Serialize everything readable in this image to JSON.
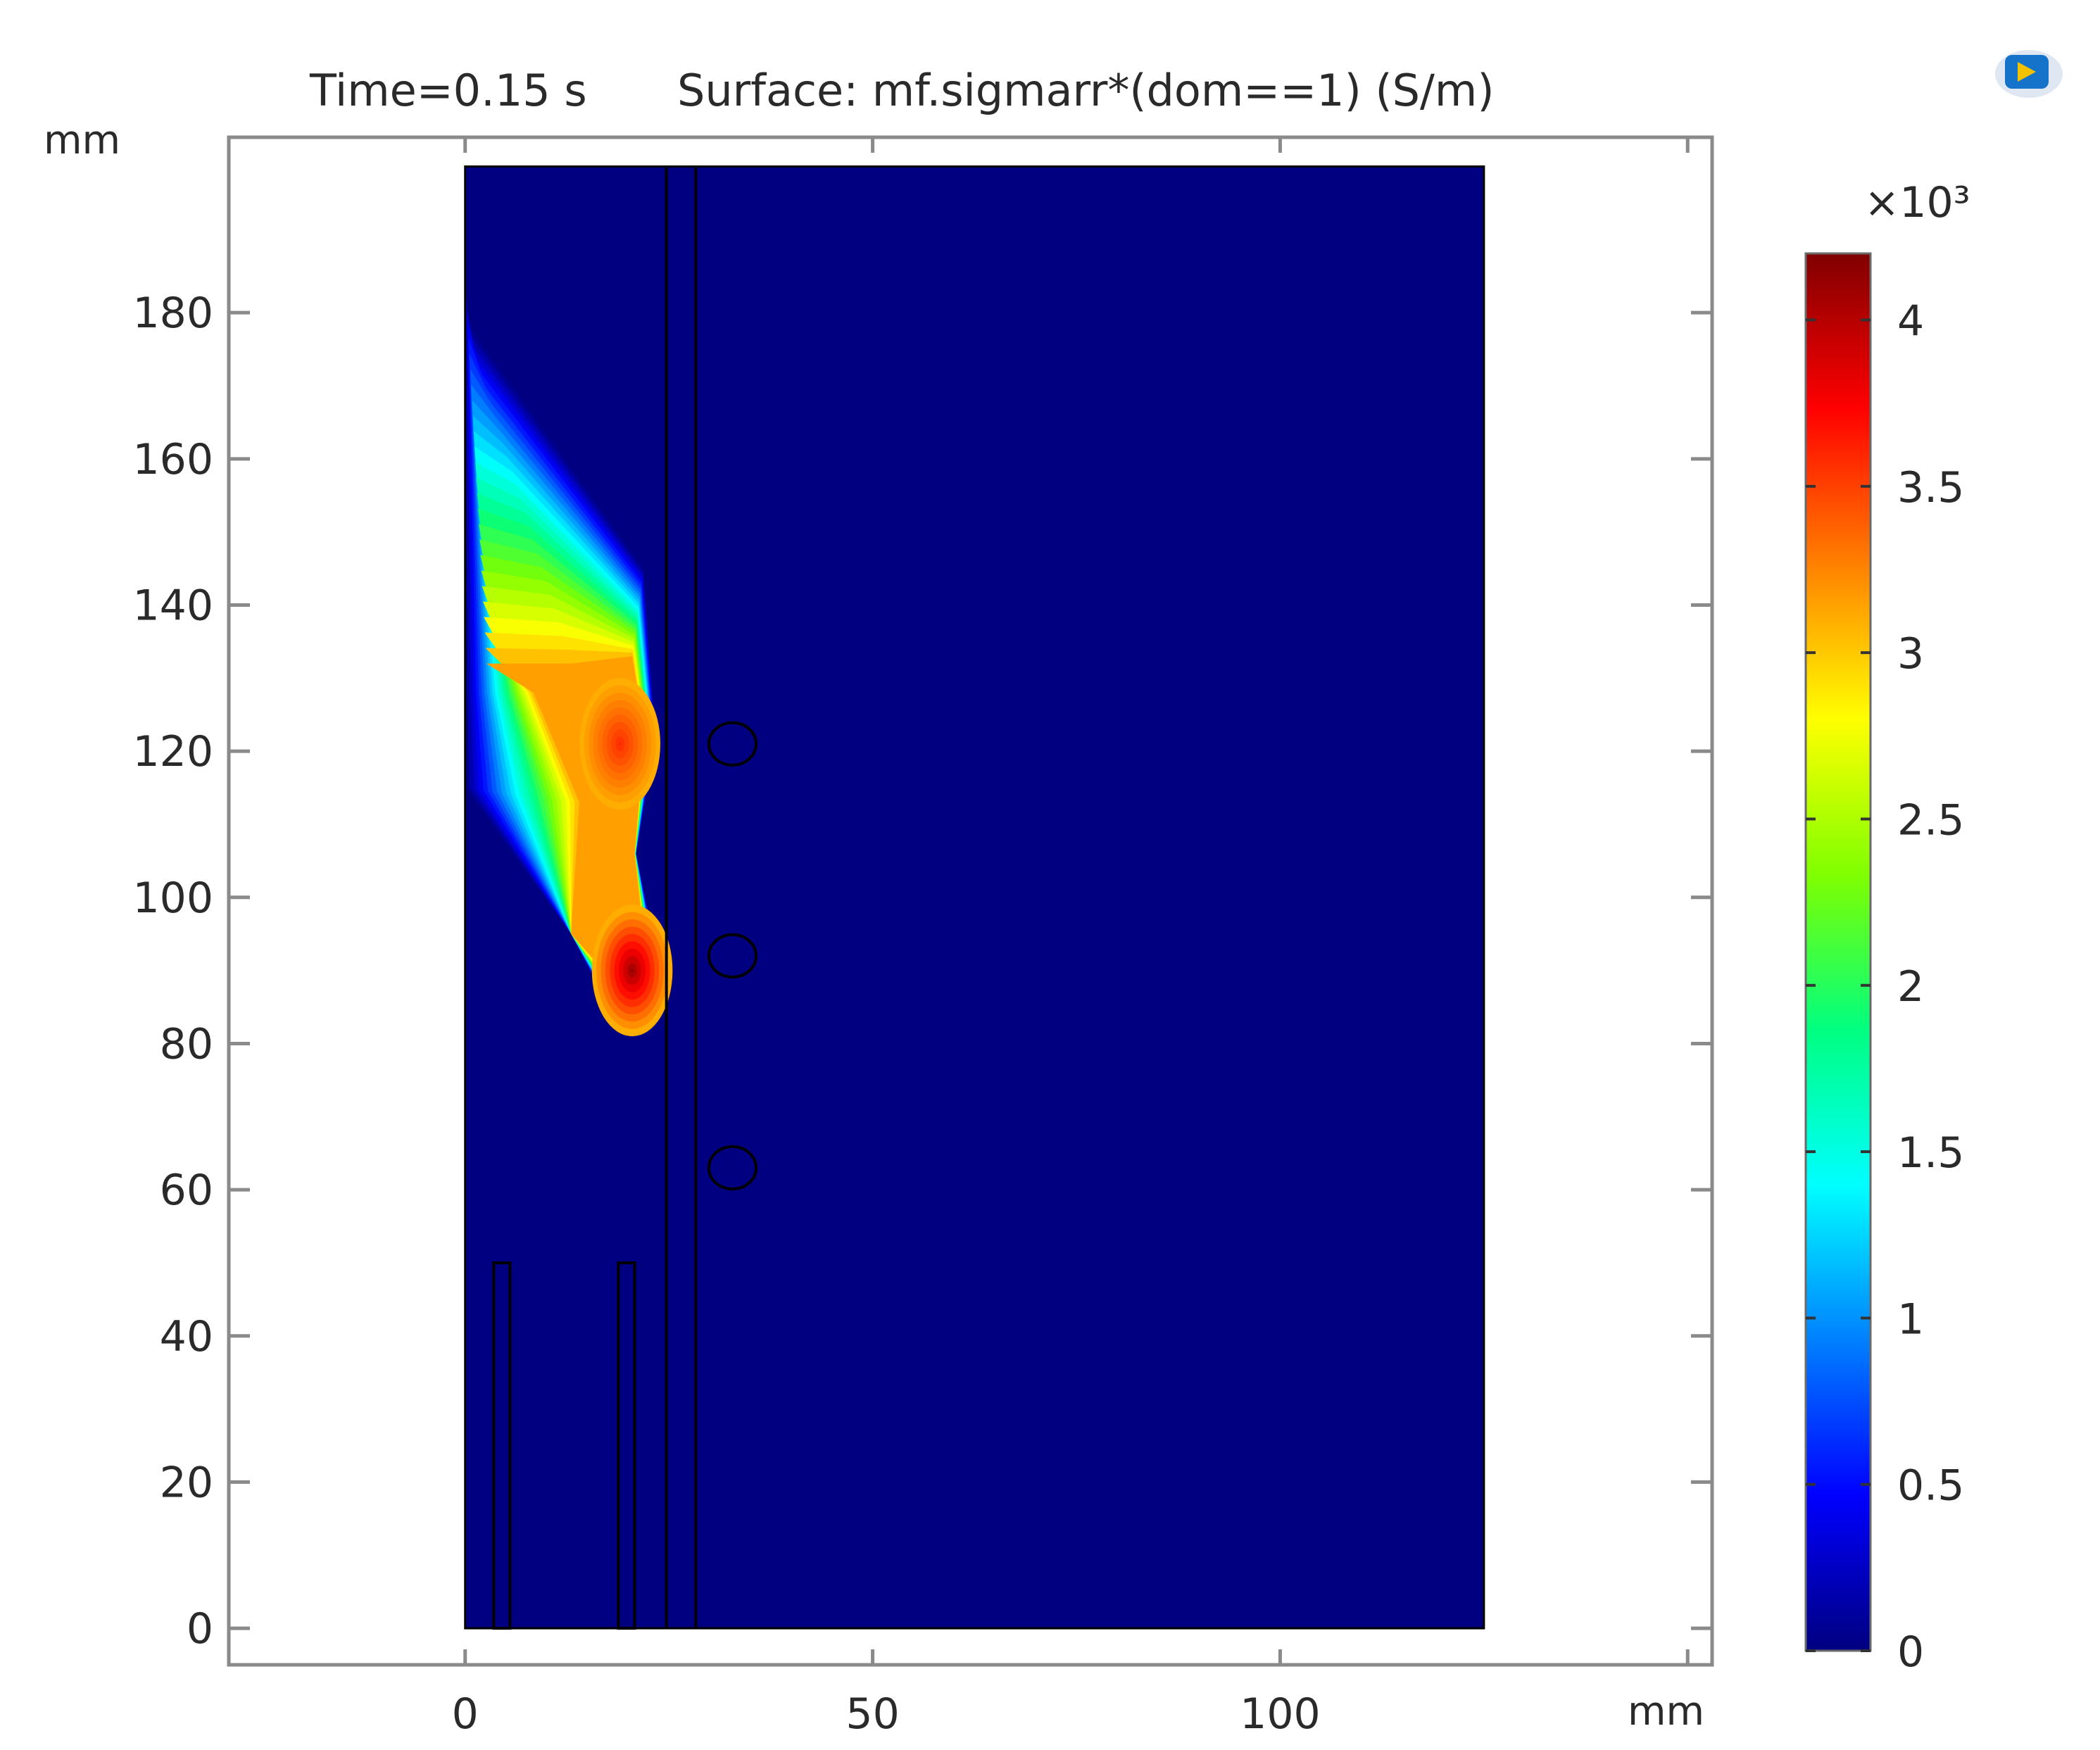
{
  "chart_data": {
    "type": "heatmap",
    "title_time": "Time=0.15 s",
    "title_surface": "Surface: mf.sigmarr*(dom==1) (S/m)",
    "x_unit": "mm",
    "y_unit": "mm",
    "xlim": [
      -29,
      153
    ],
    "ylim": [
      -5,
      204
    ],
    "x_ticks": [
      {
        "value": 0,
        "label": "0"
      },
      {
        "value": 50,
        "label": "50"
      },
      {
        "value": 100,
        "label": "100"
      }
    ],
    "y_ticks": [
      {
        "value": 0,
        "label": "0"
      },
      {
        "value": 20,
        "label": "20"
      },
      {
        "value": 40,
        "label": "40"
      },
      {
        "value": 60,
        "label": "60"
      },
      {
        "value": 80,
        "label": "80"
      },
      {
        "value": 100,
        "label": "100"
      },
      {
        "value": 120,
        "label": "120"
      },
      {
        "value": 140,
        "label": "140"
      },
      {
        "value": 160,
        "label": "160"
      },
      {
        "value": 180,
        "label": "180"
      }
    ],
    "domain": {
      "x": [
        0,
        125
      ],
      "y": [
        0,
        200
      ]
    },
    "geometry": {
      "plates": [
        {
          "x": [
            3.5,
            5.5
          ],
          "y": [
            0,
            50
          ]
        },
        {
          "x": [
            18.8,
            20.8
          ],
          "y": [
            0,
            50
          ]
        }
      ],
      "channel_lines_x": [
        24.7,
        28.3
      ],
      "circles": [
        {
          "cx": 32.8,
          "cy": 121,
          "r": 2.9
        },
        {
          "cx": 32.8,
          "cy": 92,
          "r": 2.9
        },
        {
          "cx": 32.8,
          "cy": 63,
          "r": 2.9
        }
      ]
    },
    "field": {
      "background_value": 0,
      "max_value": 4.2,
      "peaks": [
        {
          "x": 20.5,
          "y": 90,
          "value": 4.15
        },
        {
          "x": 19,
          "y": 121,
          "value": 3.6
        }
      ],
      "plume_top_y": 185
    },
    "colorbar": {
      "multiplier": "×10³",
      "min": 0,
      "max": 4.2,
      "colors": [
        "#000080",
        "#0000ff",
        "#0080ff",
        "#00ffff",
        "#00ff80",
        "#80ff00",
        "#ffff00",
        "#ff8000",
        "#ff0000",
        "#800000"
      ],
      "ticks": [
        {
          "value": 0,
          "label": "0"
        },
        {
          "value": 0.5,
          "label": "0.5"
        },
        {
          "value": 1,
          "label": "1"
        },
        {
          "value": 1.5,
          "label": "1.5"
        },
        {
          "value": 2,
          "label": "2"
        },
        {
          "value": 2.5,
          "label": "2.5"
        },
        {
          "value": 3,
          "label": "3"
        },
        {
          "value": 3.5,
          "label": "3.5"
        },
        {
          "value": 4,
          "label": "4"
        }
      ]
    },
    "colors": {
      "axis": "#8a8a8a",
      "outline": "#000000",
      "text": "#2a2a2a",
      "logo_blue": "#1573c9",
      "logo_yellow": "#f2c200"
    }
  }
}
